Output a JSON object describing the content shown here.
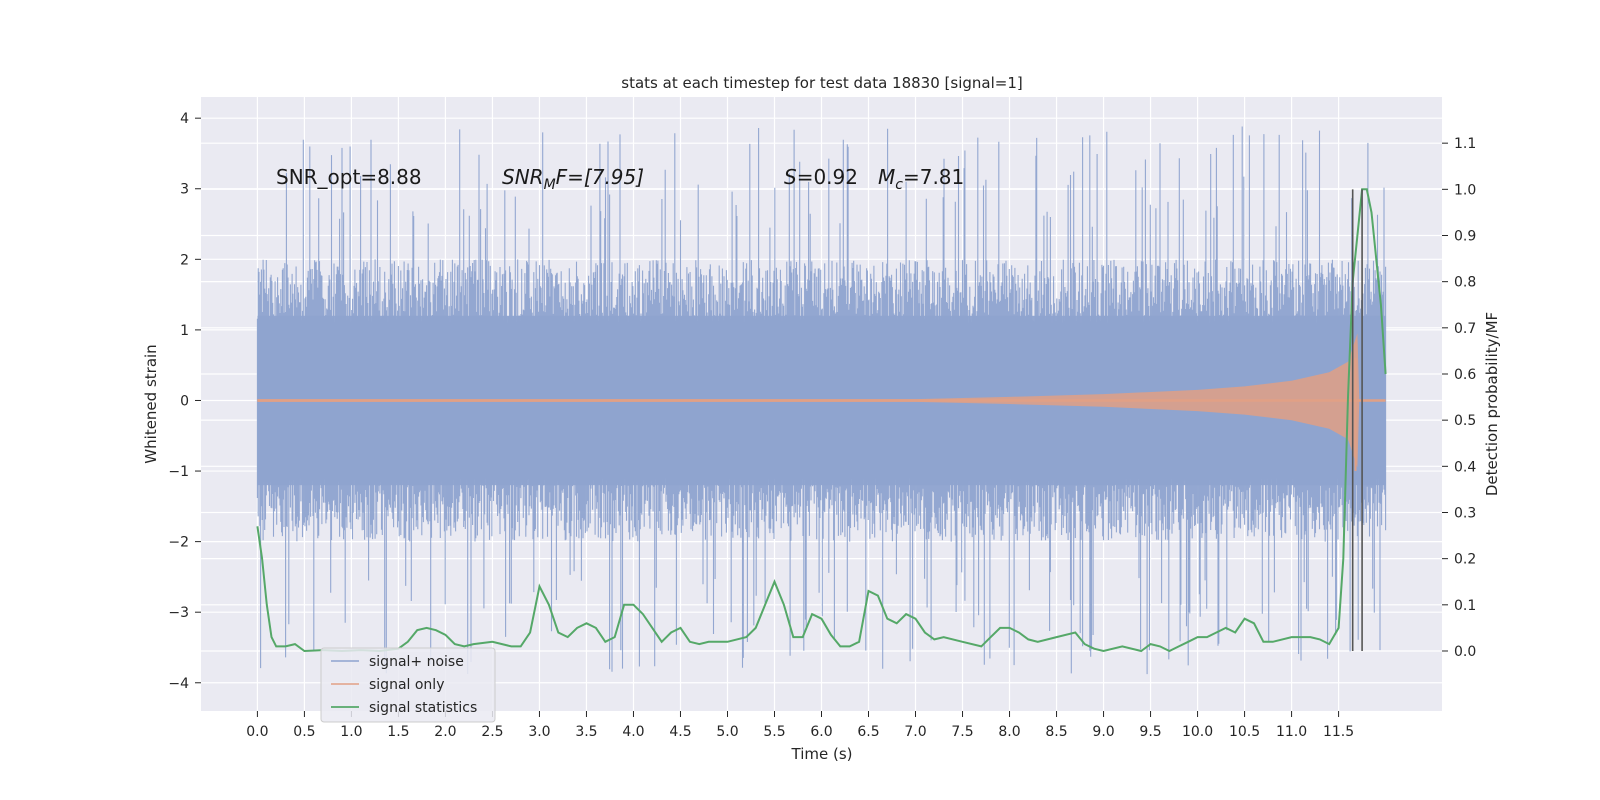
{
  "chart_data": {
    "type": "line",
    "title": "stats at each timestep for test data 18830 [signal=1]",
    "xlabel": "Time (s)",
    "ylabel": "Whitened strain",
    "y2label": "Detection probability/MF",
    "xlim": [
      -0.6,
      12.6
    ],
    "ylim": [
      -4.4,
      4.3
    ],
    "y2lim": [
      -0.13,
      1.2
    ],
    "x_ticks": [
      "0.0",
      "0.5",
      "1.0",
      "1.5",
      "2.0",
      "2.5",
      "3.0",
      "3.5",
      "4.0",
      "4.5",
      "5.0",
      "5.5",
      "6.0",
      "6.5",
      "7.0",
      "7.5",
      "8.0",
      "8.5",
      "9.0",
      "9.5",
      "10.0",
      "10.5",
      "11.0",
      "11.5"
    ],
    "y_ticks": [
      "−4",
      "−3",
      "−2",
      "−1",
      "0",
      "1",
      "2",
      "3",
      "4"
    ],
    "y2_ticks": [
      "0.0",
      "0.1",
      "0.2",
      "0.3",
      "0.4",
      "0.5",
      "0.6",
      "0.7",
      "0.8",
      "0.9",
      "1.0",
      "1.1"
    ],
    "grid": true,
    "legend_position": "bottom-left",
    "annotations": {
      "snr_opt": "SNR_opt=8.88",
      "snr_mf_base": "SNR",
      "snr_mf_sub": "M",
      "snr_mf_rest": "F=[7.95]",
      "s_var": "S",
      "s_val": "=0.92",
      "mc_var": "M",
      "mc_sub": "c",
      "mc_val": "=7.81"
    },
    "series": [
      {
        "name": "signal+ noise",
        "color": "#8ea3cf",
        "x_range": [
          0.0,
          12.0
        ],
        "description_range": [
          -3.9,
          3.9
        ],
        "upper_envelope_typical": 2.0,
        "lower_envelope_typical": -2.0
      },
      {
        "name": "signal only",
        "color": "#e1a085",
        "x": [
          0.0,
          7.0,
          8.0,
          9.0,
          10.0,
          10.5,
          11.0,
          11.4,
          11.6,
          11.7,
          11.72,
          12.0
        ],
        "amplitude": [
          0.02,
          0.02,
          0.05,
          0.09,
          0.15,
          0.2,
          0.28,
          0.4,
          0.55,
          0.95,
          0.0,
          0.0
        ]
      },
      {
        "name": "signal statistics",
        "color": "#55a868",
        "axis": "right",
        "x": [
          0.0,
          0.05,
          0.1,
          0.15,
          0.2,
          0.3,
          0.4,
          0.5,
          0.7,
          0.9,
          1.1,
          1.3,
          1.5,
          1.6,
          1.7,
          1.8,
          1.9,
          2.0,
          2.1,
          2.2,
          2.3,
          2.5,
          2.7,
          2.8,
          2.9,
          3.0,
          3.1,
          3.2,
          3.3,
          3.4,
          3.5,
          3.6,
          3.7,
          3.8,
          3.9,
          4.0,
          4.1,
          4.2,
          4.3,
          4.4,
          4.5,
          4.6,
          4.7,
          4.8,
          5.0,
          5.2,
          5.3,
          5.4,
          5.5,
          5.6,
          5.7,
          5.8,
          5.9,
          6.0,
          6.1,
          6.2,
          6.3,
          6.4,
          6.5,
          6.6,
          6.7,
          6.8,
          6.9,
          7.0,
          7.1,
          7.2,
          7.3,
          7.5,
          7.7,
          7.8,
          7.9,
          8.0,
          8.1,
          8.2,
          8.3,
          8.5,
          8.7,
          8.8,
          8.9,
          9.0,
          9.2,
          9.4,
          9.5,
          9.6,
          9.7,
          9.8,
          9.9,
          10.0,
          10.1,
          10.2,
          10.3,
          10.4,
          10.5,
          10.6,
          10.7,
          10.8,
          11.0,
          11.2,
          11.3,
          11.4,
          11.5,
          11.55,
          11.6,
          11.65,
          11.7,
          11.75,
          11.8,
          11.85,
          11.9,
          11.95,
          12.0
        ],
        "values": [
          0.27,
          0.2,
          0.1,
          0.03,
          0.01,
          0.01,
          0.015,
          0.0,
          0.002,
          0.0,
          0.002,
          0.0,
          0.005,
          0.02,
          0.045,
          0.05,
          0.045,
          0.035,
          0.015,
          0.01,
          0.015,
          0.02,
          0.01,
          0.01,
          0.04,
          0.14,
          0.1,
          0.04,
          0.03,
          0.05,
          0.06,
          0.05,
          0.02,
          0.03,
          0.1,
          0.1,
          0.08,
          0.05,
          0.02,
          0.04,
          0.05,
          0.02,
          0.015,
          0.02,
          0.02,
          0.03,
          0.05,
          0.1,
          0.15,
          0.1,
          0.03,
          0.03,
          0.08,
          0.07,
          0.035,
          0.01,
          0.01,
          0.02,
          0.13,
          0.12,
          0.07,
          0.06,
          0.08,
          0.07,
          0.04,
          0.025,
          0.03,
          0.02,
          0.01,
          0.03,
          0.05,
          0.05,
          0.04,
          0.025,
          0.02,
          0.03,
          0.04,
          0.015,
          0.005,
          0.0,
          0.01,
          0.0,
          0.015,
          0.01,
          0.0,
          0.01,
          0.02,
          0.03,
          0.03,
          0.04,
          0.05,
          0.04,
          0.07,
          0.06,
          0.02,
          0.02,
          0.03,
          0.03,
          0.025,
          0.015,
          0.05,
          0.2,
          0.55,
          0.8,
          0.9,
          1.0,
          1.0,
          0.95,
          0.85,
          0.75,
          0.6
        ]
      },
      {
        "name": "",
        "color": "#555555",
        "type": "vertical_lines",
        "x": [
          11.65,
          11.75
        ],
        "y2_range": [
          0.0,
          1.0
        ]
      }
    ]
  }
}
